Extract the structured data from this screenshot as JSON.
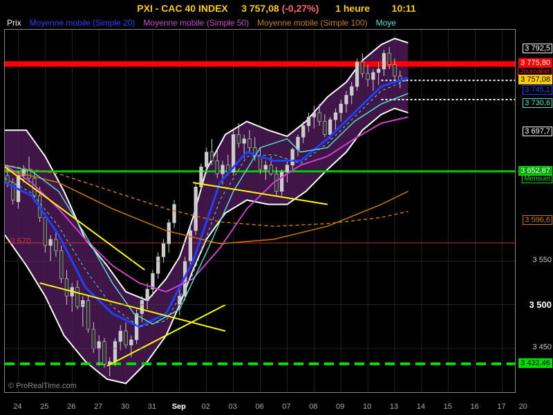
{
  "header": {
    "symbol": "PXI - CAC 40 INDEX",
    "price": "3 757,08",
    "change": "(-0,27%)",
    "timeframe": "1 heure",
    "clock": "10:11"
  },
  "legend": [
    {
      "label": "Prix",
      "color": "#ffffff"
    },
    {
      "label": "Moyenne mobile (Simple 20)",
      "color": "#2040ff"
    },
    {
      "label": "Moyenne mobile (Simple 50)",
      "color": "#d040d0"
    },
    {
      "label": "Moyenne mobile (Simple 100)",
      "color": "#cc7a00"
    },
    {
      "label": "Moye",
      "color": "#50e0d0"
    }
  ],
  "chart": {
    "type": "candlestick-with-bands",
    "ylim": [
      3400,
      3815
    ],
    "xlim": [
      0,
      19
    ],
    "background_color": "#000000",
    "grid_color": "#444444",
    "band_fill": "#4b1a56",
    "band_outline": "#ffffff",
    "candle_up": "#cccccc",
    "candle_down": "#333333",
    "candle_border": "#cccccc",
    "x_ticks": [
      {
        "pos": 0.5,
        "label": "24"
      },
      {
        "pos": 1.5,
        "label": "25"
      },
      {
        "pos": 2.5,
        "label": "26"
      },
      {
        "pos": 3.5,
        "label": "27"
      },
      {
        "pos": 4.5,
        "label": "30"
      },
      {
        "pos": 5.5,
        "label": "31"
      },
      {
        "pos": 6.5,
        "label": "Sep",
        "bold": true
      },
      {
        "pos": 7.5,
        "label": "02"
      },
      {
        "pos": 8.5,
        "label": "03"
      },
      {
        "pos": 9.5,
        "label": "06"
      },
      {
        "pos": 10.5,
        "label": "07"
      },
      {
        "pos": 11.5,
        "label": "08"
      },
      {
        "pos": 12.5,
        "label": "09"
      },
      {
        "pos": 13.5,
        "label": "10"
      },
      {
        "pos": 14.5,
        "label": "13"
      },
      {
        "pos": 15.5,
        "label": "14"
      },
      {
        "pos": 16.5,
        "label": "15"
      },
      {
        "pos": 17.5,
        "label": "16"
      },
      {
        "pos": 18.5,
        "label": "17"
      },
      {
        "pos": 19.3,
        "label": "20"
      }
    ],
    "y_ticks_plain": [
      {
        "value": 3450,
        "label": "3 450"
      },
      {
        "value": 3500,
        "label": "3 500",
        "bold": true
      },
      {
        "value": 3550,
        "label": "3 550"
      }
    ],
    "y_labels_boxed": [
      {
        "value": 3792.5,
        "label": "3 792,5",
        "border": "#ffffff",
        "color": "#ffffff",
        "bg": "transparent"
      },
      {
        "value": 3775.8,
        "label": "3 775,80",
        "border": "#ff0000",
        "color": "#ffffff",
        "bg": "#ff0000"
      },
      {
        "value": 3766,
        "label": "Journalier",
        "border": "#ff0000",
        "color": "#ff0000",
        "bg": "transparent",
        "fontsize": 10
      },
      {
        "value": 3757.08,
        "label": "3 757,08",
        "border": "#ffcc00",
        "color": "#000000",
        "bg": "#ffcc00"
      },
      {
        "value": 3745,
        "label": "3 745,1",
        "border": "#2040ff",
        "color": "#2040ff",
        "bg": "transparent"
      },
      {
        "value": 3730.6,
        "label": "3 730,6",
        "border": "#50e0d0",
        "color": "#50e0d0",
        "bg": "transparent"
      },
      {
        "value": 3697.7,
        "label": "3 697,7",
        "border": "#ffffff",
        "color": "#ffffff",
        "bg": "transparent"
      },
      {
        "value": 3652.87,
        "label": "3 652,87",
        "border": "#00dd00",
        "color": "#ffffff",
        "bg": "#00aa00"
      },
      {
        "value": 3643,
        "label": "Mensuel",
        "border": "#00dd00",
        "color": "#00dd00",
        "bg": "transparent",
        "fontsize": 10
      },
      {
        "value": 3596.6,
        "label": "3 596,6",
        "border": "#cc7a00",
        "color": "#cc7a00",
        "bg": "transparent"
      },
      {
        "value": 3432.46,
        "label": "3 432,46",
        "border": "#00dd00",
        "color": "#000000",
        "bg": "#00dd00"
      }
    ],
    "inline_labels": [
      {
        "value": 3570,
        "x": 0.2,
        "label": "3 570",
        "color": "#cc3333"
      }
    ],
    "hlines": [
      {
        "value": 3775.8,
        "color": "#ff0000",
        "width": 8,
        "dash": ""
      },
      {
        "value": 3652.87,
        "color": "#00cc00",
        "width": 3,
        "dash": ""
      },
      {
        "value": 3571,
        "color": "#cc3333",
        "width": 1,
        "dash": ""
      },
      {
        "value": 3432.46,
        "color": "#00dd00",
        "width": 4,
        "dash": "14,8"
      },
      {
        "value": 3757,
        "color": "#ffffff",
        "width": 2,
        "dash": "3,3",
        "x_from": 14,
        "x_to": 19
      },
      {
        "value": 3735,
        "color": "#ffffff",
        "width": 2,
        "dash": "3,3",
        "x_from": 14,
        "x_to": 19
      }
    ],
    "trend_lines": [
      {
        "x1": 0,
        "y1": 3658,
        "x2": 5.2,
        "y2": 3540,
        "color": "#ffff00",
        "width": 2
      },
      {
        "x1": 1.3,
        "y1": 3525,
        "x2": 8.2,
        "y2": 3470,
        "color": "#ffff00",
        "width": 2
      },
      {
        "x1": 3.8,
        "y1": 3430,
        "x2": 8.2,
        "y2": 3500,
        "color": "#ffff00",
        "width": 2
      },
      {
        "x1": 7,
        "y1": 3640,
        "x2": 12,
        "y2": 3615,
        "color": "#ffff00",
        "width": 2
      }
    ],
    "band_upper": [
      [
        0,
        3700
      ],
      [
        0.8,
        3700
      ],
      [
        1.5,
        3670
      ],
      [
        2.2,
        3630
      ],
      [
        3,
        3575
      ],
      [
        3.8,
        3545
      ],
      [
        4.5,
        3515
      ],
      [
        5.3,
        3505
      ],
      [
        6,
        3530
      ],
      [
        6.5,
        3555
      ],
      [
        7,
        3600
      ],
      [
        7.5,
        3655
      ],
      [
        8.2,
        3695
      ],
      [
        9,
        3710
      ],
      [
        9.8,
        3700
      ],
      [
        10.5,
        3693
      ],
      [
        11.2,
        3710
      ],
      [
        12,
        3738
      ],
      [
        12.7,
        3755
      ],
      [
        13.3,
        3780
      ],
      [
        14,
        3798
      ],
      [
        14.5,
        3805
      ],
      [
        15,
        3800
      ]
    ],
    "band_lower": [
      [
        0,
        3580
      ],
      [
        0.8,
        3545
      ],
      [
        1.5,
        3510
      ],
      [
        2.2,
        3465
      ],
      [
        3,
        3435
      ],
      [
        3.8,
        3415
      ],
      [
        4.5,
        3410
      ],
      [
        5.3,
        3435
      ],
      [
        6,
        3465
      ],
      [
        6.5,
        3500
      ],
      [
        7,
        3540
      ],
      [
        7.5,
        3575
      ],
      [
        8.2,
        3605
      ],
      [
        9,
        3620
      ],
      [
        9.8,
        3615
      ],
      [
        10.5,
        3615
      ],
      [
        11.2,
        3630
      ],
      [
        12,
        3655
      ],
      [
        12.7,
        3675
      ],
      [
        13.3,
        3700
      ],
      [
        14,
        3718
      ],
      [
        14.5,
        3725
      ],
      [
        15,
        3720
      ]
    ],
    "ma_lines": [
      {
        "color": "#2040ff",
        "width": 3,
        "points": [
          [
            0,
            3640
          ],
          [
            1,
            3625
          ],
          [
            2,
            3580
          ],
          [
            3,
            3520
          ],
          [
            4,
            3490
          ],
          [
            5,
            3475
          ],
          [
            6,
            3490
          ],
          [
            7,
            3550
          ],
          [
            8,
            3640
          ],
          [
            9,
            3675
          ],
          [
            10,
            3665
          ],
          [
            11,
            3665
          ],
          [
            12,
            3690
          ],
          [
            13,
            3720
          ],
          [
            14,
            3750
          ],
          [
            15,
            3760
          ]
        ]
      },
      {
        "color": "#d040d0",
        "width": 2,
        "points": [
          [
            0,
            3660
          ],
          [
            1,
            3640
          ],
          [
            2,
            3610
          ],
          [
            3,
            3575
          ],
          [
            4,
            3545
          ],
          [
            5,
            3525
          ],
          [
            6,
            3515
          ],
          [
            7,
            3530
          ],
          [
            8,
            3565
          ],
          [
            9,
            3610
          ],
          [
            10,
            3640
          ],
          [
            11,
            3660
          ],
          [
            12,
            3670
          ],
          [
            13,
            3690
          ],
          [
            14,
            3708
          ],
          [
            15,
            3715
          ]
        ]
      },
      {
        "color": "#cc7a00",
        "width": 1.5,
        "points": [
          [
            0,
            3655
          ],
          [
            2,
            3640
          ],
          [
            4,
            3610
          ],
          [
            6,
            3585
          ],
          [
            8,
            3570
          ],
          [
            10,
            3575
          ],
          [
            12,
            3590
          ],
          [
            14,
            3615
          ],
          [
            15,
            3630
          ]
        ]
      },
      {
        "color": "#cc7a00",
        "width": 1.5,
        "dash": "5,4",
        "points": [
          [
            0,
            3660
          ],
          [
            2,
            3650
          ],
          [
            4,
            3630
          ],
          [
            6,
            3610
          ],
          [
            8,
            3595
          ],
          [
            10,
            3590
          ],
          [
            12,
            3593
          ],
          [
            14,
            3600
          ],
          [
            15,
            3607
          ]
        ]
      },
      {
        "color": "#50e0d0",
        "width": 1.5,
        "points": [
          [
            0,
            3660
          ],
          [
            1,
            3653
          ],
          [
            2,
            3630
          ],
          [
            3,
            3580
          ],
          [
            4,
            3525
          ],
          [
            4.8,
            3490
          ],
          [
            5.5,
            3478
          ],
          [
            6.5,
            3495
          ],
          [
            7.5,
            3560
          ],
          [
            8.5,
            3630
          ],
          [
            9.5,
            3680
          ],
          [
            10.5,
            3690
          ],
          [
            11,
            3675
          ],
          [
            12,
            3680
          ],
          [
            13,
            3710
          ],
          [
            14,
            3730
          ],
          [
            15,
            3742
          ]
        ]
      },
      {
        "color": "#50e0d0",
        "width": 1,
        "dash": "4,4",
        "points": [
          [
            0,
            3645
          ],
          [
            1,
            3628
          ],
          [
            2,
            3590
          ],
          [
            3,
            3540
          ],
          [
            4,
            3498
          ],
          [
            5,
            3475
          ],
          [
            6,
            3482
          ],
          [
            7,
            3535
          ],
          [
            8,
            3620
          ],
          [
            9,
            3670
          ],
          [
            10,
            3672
          ],
          [
            11,
            3662
          ],
          [
            12,
            3685
          ],
          [
            13,
            3715
          ],
          [
            14,
            3745
          ],
          [
            15,
            3758
          ]
        ]
      }
    ],
    "candles": [
      [
        0.1,
        3648,
        3660,
        3635,
        3640
      ],
      [
        0.3,
        3640,
        3645,
        3615,
        3620
      ],
      [
        0.5,
        3618,
        3653,
        3610,
        3648
      ],
      [
        0.7,
        3648,
        3660,
        3640,
        3655
      ],
      [
        0.9,
        3655,
        3670,
        3640,
        3645
      ],
      [
        1.1,
        3645,
        3652,
        3618,
        3625
      ],
      [
        1.3,
        3625,
        3635,
        3595,
        3600
      ],
      [
        1.5,
        3600,
        3605,
        3560,
        3568
      ],
      [
        1.7,
        3568,
        3580,
        3550,
        3575
      ],
      [
        1.9,
        3575,
        3585,
        3555,
        3562
      ],
      [
        2.1,
        3562,
        3568,
        3525,
        3530
      ],
      [
        2.3,
        3530,
        3540,
        3500,
        3510
      ],
      [
        2.5,
        3510,
        3525,
        3492,
        3520
      ],
      [
        2.7,
        3520,
        3528,
        3495,
        3498
      ],
      [
        2.9,
        3498,
        3510,
        3475,
        3505
      ],
      [
        3.1,
        3505,
        3510,
        3468,
        3472
      ],
      [
        3.3,
        3472,
        3480,
        3445,
        3450
      ],
      [
        3.5,
        3450,
        3465,
        3430,
        3458
      ],
      [
        3.7,
        3458,
        3462,
        3428,
        3432
      ],
      [
        3.9,
        3432,
        3440,
        3418,
        3435
      ],
      [
        4.1,
        3435,
        3462,
        3430,
        3458
      ],
      [
        4.3,
        3458,
        3477,
        3448,
        3470
      ],
      [
        4.5,
        3470,
        3480,
        3450,
        3454
      ],
      [
        4.7,
        3454,
        3465,
        3440,
        3460
      ],
      [
        4.9,
        3460,
        3495,
        3455,
        3490
      ],
      [
        5.1,
        3490,
        3510,
        3480,
        3505
      ],
      [
        5.3,
        3505,
        3525,
        3495,
        3518
      ],
      [
        5.5,
        3518,
        3540,
        3510,
        3536
      ],
      [
        5.7,
        3536,
        3560,
        3530,
        3555
      ],
      [
        5.9,
        3555,
        3575,
        3548,
        3570
      ],
      [
        6.1,
        3570,
        3598,
        3560,
        3594
      ],
      [
        6.3,
        3594,
        3620,
        3588,
        3615
      ],
      [
        6.5,
        3500,
        3520,
        3488,
        3510
      ],
      [
        6.7,
        3510,
        3555,
        3505,
        3550
      ],
      [
        6.9,
        3550,
        3590,
        3545,
        3585
      ],
      [
        7.1,
        3585,
        3640,
        3580,
        3635
      ],
      [
        7.3,
        3635,
        3662,
        3630,
        3658
      ],
      [
        7.5,
        3658,
        3680,
        3650,
        3675
      ],
      [
        7.7,
        3675,
        3690,
        3660,
        3665
      ],
      [
        7.9,
        3665,
        3678,
        3645,
        3650
      ],
      [
        8.1,
        3650,
        3665,
        3638,
        3660
      ],
      [
        8.3,
        3660,
        3672,
        3648,
        3652
      ],
      [
        8.5,
        3652,
        3700,
        3648,
        3695
      ],
      [
        8.7,
        3695,
        3708,
        3680,
        3685
      ],
      [
        8.9,
        3685,
        3695,
        3668,
        3690
      ],
      [
        9.1,
        3690,
        3700,
        3675,
        3680
      ],
      [
        9.3,
        3680,
        3692,
        3665,
        3670
      ],
      [
        9.5,
        3670,
        3680,
        3650,
        3655
      ],
      [
        9.7,
        3655,
        3665,
        3643,
        3660
      ],
      [
        9.9,
        3660,
        3670,
        3648,
        3650
      ],
      [
        10.1,
        3650,
        3658,
        3625,
        3630
      ],
      [
        10.3,
        3630,
        3655,
        3625,
        3652
      ],
      [
        10.5,
        3652,
        3665,
        3640,
        3660
      ],
      [
        10.7,
        3660,
        3680,
        3655,
        3678
      ],
      [
        10.9,
        3678,
        3695,
        3670,
        3692
      ],
      [
        11.1,
        3692,
        3710,
        3685,
        3705
      ],
      [
        11.3,
        3705,
        3720,
        3698,
        3715
      ],
      [
        11.5,
        3715,
        3728,
        3702,
        3720
      ],
      [
        11.7,
        3720,
        3730,
        3705,
        3710
      ],
      [
        11.9,
        3710,
        3718,
        3692,
        3695
      ],
      [
        12.1,
        3695,
        3715,
        3690,
        3712
      ],
      [
        12.3,
        3712,
        3725,
        3700,
        3720
      ],
      [
        12.5,
        3720,
        3735,
        3710,
        3730
      ],
      [
        12.7,
        3730,
        3745,
        3720,
        3740
      ],
      [
        12.9,
        3740,
        3755,
        3730,
        3750
      ],
      [
        13.1,
        3750,
        3782,
        3745,
        3778
      ],
      [
        13.3,
        3778,
        3788,
        3760,
        3765
      ],
      [
        13.5,
        3765,
        3775,
        3750,
        3758
      ],
      [
        13.7,
        3758,
        3770,
        3745,
        3766
      ],
      [
        13.9,
        3766,
        3778,
        3752,
        3770
      ],
      [
        14.1,
        3770,
        3792,
        3762,
        3788
      ],
      [
        14.3,
        3788,
        3795,
        3770,
        3775
      ],
      [
        14.5,
        3775,
        3782,
        3758,
        3762
      ],
      [
        14.7,
        3762,
        3768,
        3748,
        3757
      ]
    ]
  },
  "watermark": "© ProRealTime.com"
}
